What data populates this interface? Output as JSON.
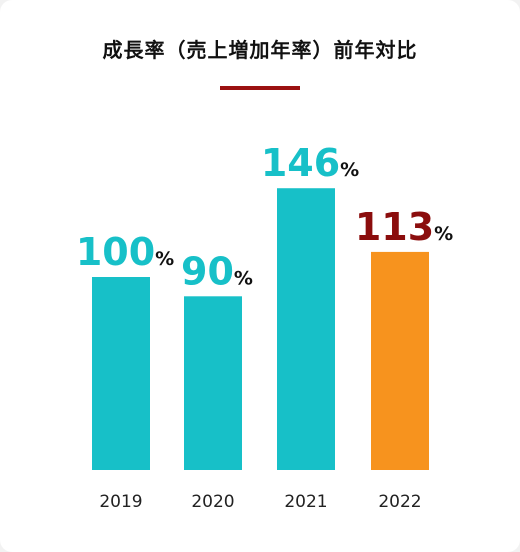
{
  "chart_data": {
    "type": "bar",
    "title": "成長率（売上増加年率）前年対比",
    "categories": [
      "2019",
      "2020",
      "2021",
      "2022"
    ],
    "values": [
      100,
      90,
      146,
      113
    ],
    "unit": "%",
    "ylim": [
      0,
      160
    ],
    "grid": false,
    "legend": "none",
    "colors": {
      "default_bar": "#17c0c8",
      "highlight_bar": "#f7931e",
      "highlight_label": "#8b0d0d",
      "unit_text": "#111111",
      "title_rule": "#9b1111"
    },
    "highlight_index": 3
  }
}
